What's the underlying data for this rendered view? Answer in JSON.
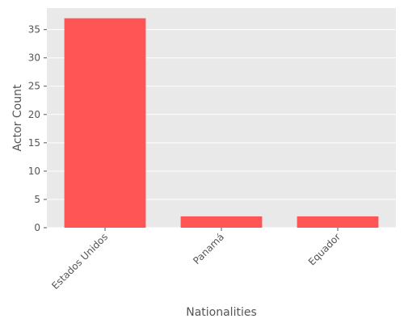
{
  "chart_data": {
    "type": "bar",
    "title": "",
    "xlabel": "Nationalities",
    "ylabel": "Actor Count",
    "categories": [
      "Estados Unidos",
      "Panamá",
      "Equador"
    ],
    "values": [
      37,
      2,
      2
    ],
    "ylim": [
      0,
      38.8
    ],
    "yticks": [
      0,
      5,
      10,
      15,
      20,
      25,
      30,
      35
    ],
    "grid": true,
    "colors": {
      "bar": "#ff5555",
      "plot_background": "#e9e9e9",
      "grid": "#ffffff",
      "text": "#555555"
    }
  }
}
